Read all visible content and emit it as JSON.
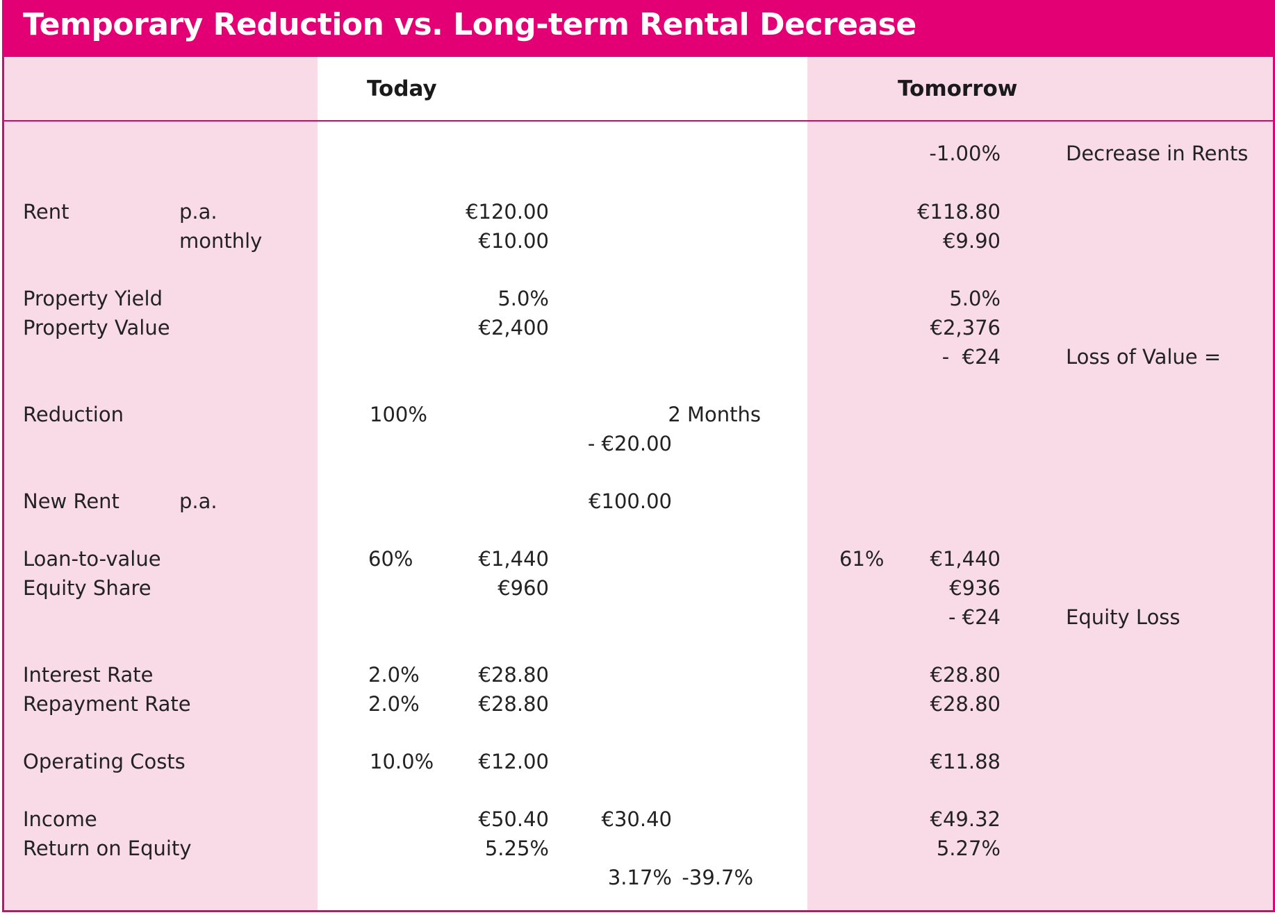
{
  "title": "Temporary Reduction vs. Long-term Rental Decrease",
  "columns": {
    "today": "Today",
    "tomorrow": "Tomorrow"
  },
  "rows": {
    "decrease": {
      "value_tomorrow": "-1.00%",
      "note": "Decrease in Rents"
    },
    "rent": {
      "label": "Rent",
      "sub_pa": "p.a.",
      "sub_monthly": "monthly",
      "pa_today": "€120.00",
      "monthly_today": "€10.00",
      "pa_tomorrow": "€118.80",
      "monthly_tomorrow": "€9.90"
    },
    "property_yield": {
      "label": "Property Yield",
      "today": "5.0%",
      "tomorrow": "5.0%"
    },
    "property_value": {
      "label": "Property Value",
      "today": "€2,400",
      "tomorrow": "€2,376",
      "loss_tomorrow": "-  €24",
      "note": "Loss of Value ="
    },
    "reduction": {
      "label": "Reduction",
      "pct": "100%",
      "months": "2 Months",
      "amount": "- €20.00"
    },
    "new_rent": {
      "label": "New Rent",
      "sub": "p.a.",
      "value": "€100.00"
    },
    "ltv": {
      "label": "Loan-to-value",
      "pct_today": "60%",
      "today": "€1,440",
      "pct_tomorrow": "61%",
      "tomorrow": "€1,440"
    },
    "equity": {
      "label": "Equity Share",
      "today": "€960",
      "tomorrow": "€936",
      "loss_tomorrow": "- €24",
      "note": "Equity Loss"
    },
    "interest": {
      "label": "Interest Rate",
      "pct": "2.0%",
      "today": "€28.80",
      "tomorrow": "€28.80"
    },
    "repayment": {
      "label": "Repayment Rate",
      "pct": "2.0%",
      "today": "€28.80",
      "tomorrow": "€28.80"
    },
    "operating": {
      "label": "Operating Costs",
      "pct": "10.0%",
      "today": "€12.00",
      "tomorrow": "€11.88"
    },
    "income": {
      "label": "Income",
      "today": "€50.40",
      "temp": "€30.40",
      "tomorrow": "€49.32"
    },
    "roe": {
      "label": "Return on Equity",
      "today": "5.25%",
      "tomorrow": "5.27%",
      "temp": "3.17%",
      "change": "-39.7%"
    }
  },
  "colors": {
    "accent": "#e20074",
    "panel": "#f9dbe7",
    "text": "#222222"
  }
}
